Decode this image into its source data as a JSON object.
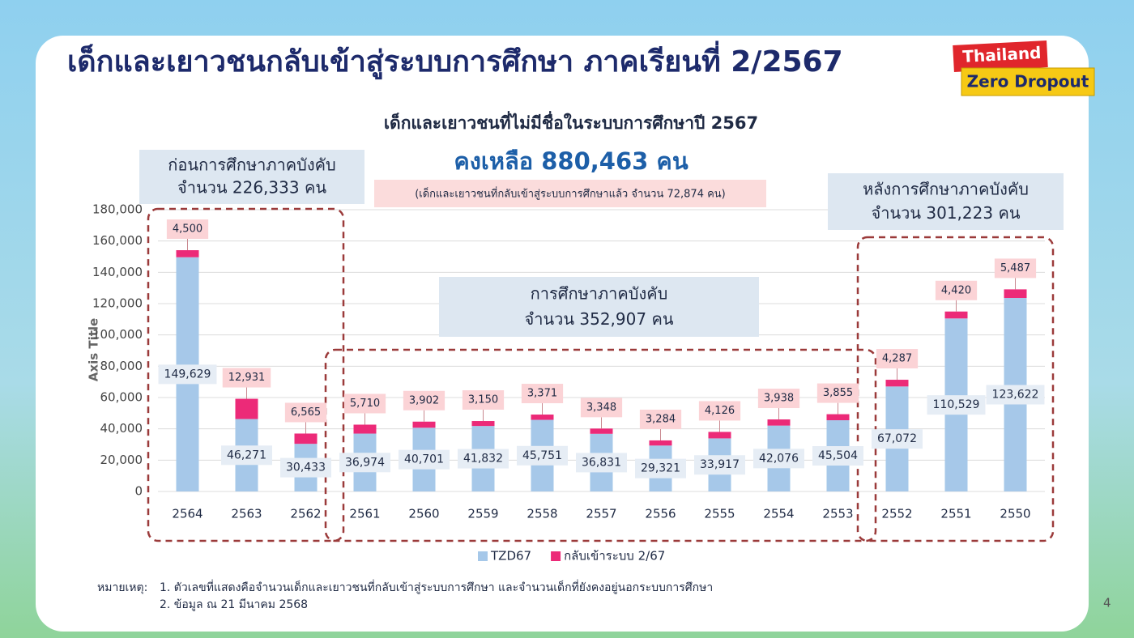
{
  "slide": {
    "title": "เด็กและเยาวชนกลับเข้าสู่ระบบการศึกษา ภาคเรียนที่ 2/2567",
    "logo": [
      "Thailand",
      "Zero Dropout"
    ],
    "note_label": "หมายเหตุ:",
    "notes": [
      "1. ตัวเลขที่แสดงคือจำนวนเด็กและเยาวชนที่กลับเข้าสู่ระบบการศึกษา และจำนวนเด็กที่ยังคงอยู่นอกระบบการศึกษา",
      "2. ข้อมูล ณ  21 มีนาคม 2568"
    ],
    "page_number": "4"
  },
  "chart_data": {
    "type": "stacked_bar",
    "title": "เด็กและเยาวชนที่ไม่มีชื่อในระบบการศึกษาปี 2567",
    "subtitle": "คงเหลือ 880,463 คน",
    "note": "(เด็กและเยาวชนที่กลับเข้าสู่ระบบการศึกษาแล้ว จำนวน 72,874 คน)",
    "annotations": [
      [
        "ก่อนการศึกษาภาคบังคับ",
        "จำนวน 226,333 คน"
      ],
      [
        "การศึกษาภาคบังคับ",
        "จำนวน 352,907 คน"
      ],
      [
        "หลังการศึกษาภาคบังคับ",
        "จำนวน 301,223 คน"
      ]
    ],
    "y_label": "Axis Title",
    "categories": [
      "2564",
      "2563",
      "2562",
      "2561",
      "2560",
      "2559",
      "2558",
      "2557",
      "2556",
      "2555",
      "2554",
      "2553",
      "2552",
      "2551",
      "2550"
    ],
    "series": [
      {
        "name": "TZD67",
        "color": "#a6c8e9",
        "values": [
          149629,
          46271,
          30433,
          36974,
          40701,
          41832,
          45751,
          36831,
          29321,
          33917,
          42076,
          45504,
          67072,
          110529,
          123622
        ],
        "value_labels": [
          "149,629",
          "46,271",
          "30,433",
          "36,974",
          "40,701",
          "41,832",
          "45,751",
          "36,831",
          "29,321",
          "33,917",
          "42,076",
          "45,504",
          "67,072",
          "110,529",
          "123,622"
        ]
      },
      {
        "name": "กลับเข้าระบบ 2/67",
        "color": "#ec2a78",
        "values": [
          4500,
          12931,
          6565,
          5710,
          3902,
          3150,
          3371,
          3348,
          3284,
          4126,
          3938,
          3855,
          4287,
          4420,
          5487
        ],
        "value_labels": [
          "4,500",
          "12,931",
          "6,565",
          "5,710",
          "3,902",
          "3,150",
          "3,371",
          "3,348",
          "3,284",
          "4,126",
          "3,938",
          "3,855",
          "4,287",
          "4,420",
          "5,487"
        ]
      }
    ],
    "ylim": [
      0,
      180000
    ],
    "yticks": [
      0,
      {
        "value": 20000,
        "label": "20,000"
      },
      {
        "value": 40000,
        "label": "40,000"
      },
      {
        "value": 60000,
        "label": "60,000"
      },
      {
        "value": 80000,
        "label": "80,000"
      },
      {
        "value": 100000,
        "label": "100,000"
      },
      {
        "value": 120000,
        "label": "120,000"
      },
      {
        "value": 140000,
        "label": "140,000"
      },
      {
        "value": 160000,
        "label": "160,000"
      },
      {
        "value": 180000,
        "label": "180,000"
      }
    ],
    "grid": true,
    "legend": "bottom"
  }
}
